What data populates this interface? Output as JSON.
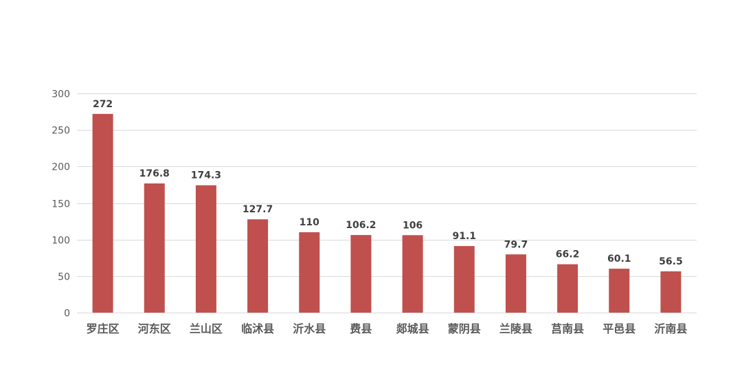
{
  "chart_data": {
    "type": "bar",
    "title": "",
    "xlabel": "",
    "ylabel": "",
    "categories": [
      "罗庄区",
      "河东区",
      "兰山区",
      "临沭县",
      "沂水县",
      "费县",
      "郯城县",
      "蒙阴县",
      "兰陵县",
      "莒南县",
      "平邑县",
      "沂南县"
    ],
    "values": [
      272,
      176.8,
      174.3,
      127.7,
      110,
      106.2,
      106,
      91.1,
      79.7,
      66.2,
      60.1,
      56.5
    ],
    "value_labels": [
      "272",
      "176.8",
      "174.3",
      "127.7",
      "110",
      "106.2",
      "106",
      "91.1",
      "79.7",
      "66.2",
      "60.1",
      "56.5"
    ],
    "ylim": [
      0,
      300
    ],
    "yticks": [
      0,
      50,
      100,
      150,
      200,
      250,
      300
    ],
    "ytick_labels": [
      "0",
      "50",
      "100",
      "150",
      "200",
      "250",
      "300"
    ],
    "grid": true,
    "legend": "none",
    "bar_color": "#c0504d"
  }
}
